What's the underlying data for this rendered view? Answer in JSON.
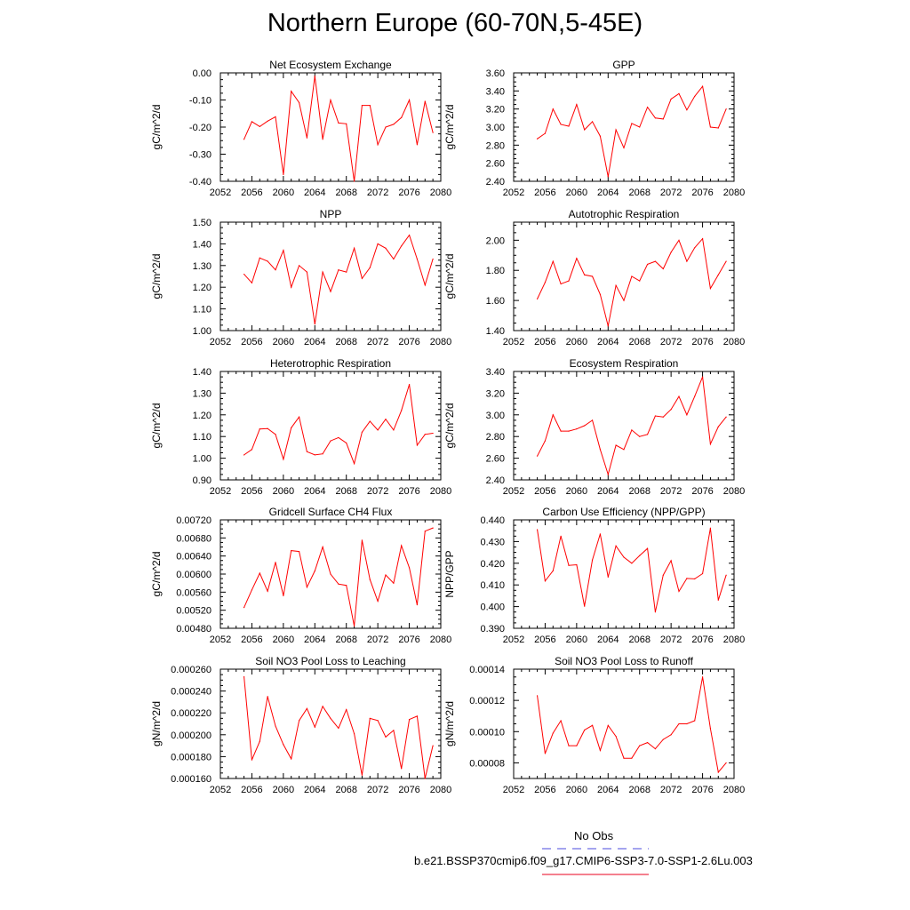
{
  "figure": {
    "title": "Northern Europe (60-70N,5-45E)",
    "legend": [
      {
        "label": "No Obs",
        "color": "#4a4adf",
        "dash": "dashed"
      },
      {
        "label": "b.e21.BSSP370cmip6.f09_g17.CMIP6-SSP3-7.0-SSP1-2.6Lu.003",
        "color": "#e8001c",
        "dash": "solid"
      }
    ],
    "line_color": "#ff0000"
  },
  "chart_data": [
    {
      "type": "line",
      "title": "Net Ecosystem Exchange",
      "ylabel": "gC/m^2/d",
      "xlim": [
        2052,
        2080
      ],
      "xticks": [
        "2052",
        "2056",
        "2060",
        "2064",
        "2068",
        "2072",
        "2076",
        "2080"
      ],
      "ylim": [
        -0.4,
        0.0
      ],
      "yticks": [
        "0.00",
        "-0.10",
        "-0.20",
        "-0.30",
        "-0.40"
      ],
      "ytick_values": [
        0.0,
        -0.1,
        -0.2,
        -0.3,
        -0.4
      ],
      "x": [
        2055,
        2056,
        2057,
        2058,
        2059,
        2060,
        2061,
        2062,
        2063,
        2064,
        2065,
        2066,
        2067,
        2068,
        2069,
        2070,
        2071,
        2072,
        2073,
        2074,
        2075,
        2076,
        2077,
        2078,
        2079
      ],
      "values": [
        -0.245,
        -0.18,
        -0.198,
        -0.178,
        -0.162,
        -0.375,
        -0.068,
        -0.11,
        -0.24,
        -0.012,
        -0.245,
        -0.1,
        -0.185,
        -0.188,
        -0.4,
        -0.12,
        -0.12,
        -0.265,
        -0.2,
        -0.19,
        -0.165,
        -0.1,
        -0.265,
        -0.105,
        -0.22
      ]
    },
    {
      "type": "line",
      "title": "GPP",
      "ylabel": "gC/m^2/d",
      "xlim": [
        2052,
        2080
      ],
      "xticks": [
        "2052",
        "2056",
        "2060",
        "2064",
        "2068",
        "2072",
        "2076",
        "2080"
      ],
      "ylim": [
        2.4,
        3.6
      ],
      "yticks": [
        "3.60",
        "3.40",
        "3.20",
        "3.00",
        "2.80",
        "2.60",
        "2.40"
      ],
      "ytick_values": [
        3.6,
        3.4,
        3.2,
        3.0,
        2.8,
        2.6,
        2.4
      ],
      "x": [
        2055,
        2056,
        2057,
        2058,
        2059,
        2060,
        2061,
        2062,
        2063,
        2064,
        2065,
        2066,
        2067,
        2068,
        2069,
        2070,
        2071,
        2072,
        2073,
        2074,
        2075,
        2076,
        2077,
        2078,
        2079
      ],
      "values": [
        2.87,
        2.93,
        3.2,
        3.03,
        3.01,
        3.25,
        2.97,
        3.06,
        2.9,
        2.45,
        2.97,
        2.77,
        3.04,
        3.0,
        3.22,
        3.1,
        3.09,
        3.31,
        3.37,
        3.19,
        3.34,
        3.45,
        3.0,
        2.99,
        3.2
      ]
    },
    {
      "type": "line",
      "title": "NPP",
      "ylabel": "gC/m^2/d",
      "xlim": [
        2052,
        2080
      ],
      "xticks": [
        "2052",
        "2056",
        "2060",
        "2064",
        "2068",
        "2072",
        "2076",
        "2080"
      ],
      "ylim": [
        1.0,
        1.5
      ],
      "yticks": [
        "1.50",
        "1.40",
        "1.30",
        "1.20",
        "1.10",
        "1.00"
      ],
      "ytick_values": [
        1.5,
        1.4,
        1.3,
        1.2,
        1.1,
        1.0
      ],
      "x": [
        2055,
        2056,
        2057,
        2058,
        2059,
        2060,
        2061,
        2062,
        2063,
        2064,
        2065,
        2066,
        2067,
        2068,
        2069,
        2070,
        2071,
        2072,
        2073,
        2074,
        2075,
        2076,
        2077,
        2078,
        2079
      ],
      "values": [
        1.26,
        1.22,
        1.335,
        1.32,
        1.28,
        1.37,
        1.2,
        1.3,
        1.27,
        1.03,
        1.27,
        1.18,
        1.28,
        1.27,
        1.38,
        1.24,
        1.29,
        1.4,
        1.38,
        1.33,
        1.39,
        1.44,
        1.33,
        1.21,
        1.33
      ]
    },
    {
      "type": "line",
      "title": "Autotrophic Respiration",
      "ylabel": "gC/m^2/d",
      "xlim": [
        2052,
        2080
      ],
      "xticks": [
        "2052",
        "2056",
        "2060",
        "2064",
        "2068",
        "2072",
        "2076",
        "2080"
      ],
      "ylim": [
        1.4,
        2.12
      ],
      "yticks": [
        "2.00",
        "1.80",
        "1.60",
        "1.40"
      ],
      "ytick_values": [
        2.0,
        1.8,
        1.6,
        1.4
      ],
      "x": [
        2055,
        2056,
        2057,
        2058,
        2059,
        2060,
        2061,
        2062,
        2063,
        2064,
        2065,
        2066,
        2067,
        2068,
        2069,
        2070,
        2071,
        2072,
        2073,
        2074,
        2075,
        2076,
        2077,
        2078,
        2079
      ],
      "values": [
        1.61,
        1.72,
        1.86,
        1.71,
        1.73,
        1.88,
        1.77,
        1.76,
        1.64,
        1.43,
        1.7,
        1.6,
        1.76,
        1.73,
        1.84,
        1.86,
        1.81,
        1.92,
        2.0,
        1.86,
        1.95,
        2.01,
        1.68,
        1.77,
        1.86
      ]
    },
    {
      "type": "line",
      "title": "Heterotrophic Respiration",
      "ylabel": "gC/m^2/d",
      "xlim": [
        2052,
        2080
      ],
      "xticks": [
        "2052",
        "2056",
        "2060",
        "2064",
        "2068",
        "2072",
        "2076",
        "2080"
      ],
      "ylim": [
        0.9,
        1.4
      ],
      "yticks": [
        "1.40",
        "1.30",
        "1.20",
        "1.10",
        "1.00",
        "0.90"
      ],
      "ytick_values": [
        1.4,
        1.3,
        1.2,
        1.1,
        1.0,
        0.9
      ],
      "x": [
        2055,
        2056,
        2057,
        2058,
        2059,
        2060,
        2061,
        2062,
        2063,
        2064,
        2065,
        2066,
        2067,
        2068,
        2069,
        2070,
        2071,
        2072,
        2073,
        2074,
        2075,
        2076,
        2077,
        2078,
        2079
      ],
      "values": [
        1.015,
        1.04,
        1.135,
        1.137,
        1.11,
        0.995,
        1.14,
        1.19,
        1.03,
        1.015,
        1.02,
        1.08,
        1.095,
        1.07,
        0.975,
        1.12,
        1.17,
        1.13,
        1.18,
        1.13,
        1.22,
        1.34,
        1.06,
        1.11,
        1.115
      ]
    },
    {
      "type": "line",
      "title": "Ecosystem Respiration",
      "ylabel": "gC/m^2/d",
      "xlim": [
        2052,
        2080
      ],
      "xticks": [
        "2052",
        "2056",
        "2060",
        "2064",
        "2068",
        "2072",
        "2076",
        "2080"
      ],
      "ylim": [
        2.4,
        3.4
      ],
      "yticks": [
        "3.40",
        "3.20",
        "3.00",
        "2.80",
        "2.60",
        "2.40"
      ],
      "ytick_values": [
        3.4,
        3.2,
        3.0,
        2.8,
        2.6,
        2.4
      ],
      "x": [
        2055,
        2056,
        2057,
        2058,
        2059,
        2060,
        2061,
        2062,
        2063,
        2064,
        2065,
        2066,
        2067,
        2068,
        2069,
        2070,
        2071,
        2072,
        2073,
        2074,
        2075,
        2076,
        2077,
        2078,
        2079
      ],
      "values": [
        2.62,
        2.76,
        3.0,
        2.85,
        2.85,
        2.87,
        2.9,
        2.95,
        2.68,
        2.45,
        2.72,
        2.68,
        2.86,
        2.8,
        2.82,
        2.99,
        2.98,
        3.05,
        3.17,
        3.0,
        3.17,
        3.35,
        2.73,
        2.89,
        2.98
      ]
    },
    {
      "type": "line",
      "title": "Gridcell Surface CH4 Flux",
      "ylabel": "gC/m^2/d",
      "xlim": [
        2052,
        2080
      ],
      "xticks": [
        "2052",
        "2056",
        "2060",
        "2064",
        "2068",
        "2072",
        "2076",
        "2080"
      ],
      "ylim": [
        0.0048,
        0.0072
      ],
      "yticks": [
        "0.00720",
        "0.00680",
        "0.00640",
        "0.00600",
        "0.00560",
        "0.00520",
        "0.00480"
      ],
      "ytick_values": [
        0.0072,
        0.0068,
        0.0064,
        0.006,
        0.0056,
        0.0052,
        0.0048
      ],
      "x": [
        2055,
        2056,
        2057,
        2058,
        2059,
        2060,
        2061,
        2062,
        2063,
        2064,
        2065,
        2066,
        2067,
        2068,
        2069,
        2070,
        2071,
        2072,
        2073,
        2074,
        2075,
        2076,
        2077,
        2078,
        2079
      ],
      "values": [
        0.00526,
        0.00565,
        0.00602,
        0.00562,
        0.00626,
        0.00552,
        0.00652,
        0.0065,
        0.00571,
        0.00607,
        0.0066,
        0.006,
        0.00578,
        0.00575,
        0.00485,
        0.00675,
        0.00588,
        0.0054,
        0.00598,
        0.0058,
        0.00663,
        0.00614,
        0.00532,
        0.00695,
        0.00702
      ]
    },
    {
      "type": "line",
      "title": "Carbon Use Efficiency (NPP/GPP)",
      "ylabel": "NPP/GPP",
      "xlim": [
        2052,
        2080
      ],
      "xticks": [
        "2052",
        "2056",
        "2060",
        "2064",
        "2068",
        "2072",
        "2076",
        "2080"
      ],
      "ylim": [
        0.39,
        0.44
      ],
      "yticks": [
        "0.440",
        "0.430",
        "0.420",
        "0.410",
        "0.400",
        "0.390"
      ],
      "ytick_values": [
        0.44,
        0.43,
        0.42,
        0.41,
        0.4,
        0.39
      ],
      "x": [
        2055,
        2056,
        2057,
        2058,
        2059,
        2060,
        2061,
        2062,
        2063,
        2064,
        2065,
        2066,
        2067,
        2068,
        2069,
        2070,
        2071,
        2072,
        2073,
        2074,
        2075,
        2076,
        2077,
        2078,
        2079
      ],
      "values": [
        0.4355,
        0.4118,
        0.4165,
        0.4325,
        0.419,
        0.4193,
        0.4002,
        0.4215,
        0.4335,
        0.4136,
        0.428,
        0.4228,
        0.42,
        0.4235,
        0.4268,
        0.3975,
        0.4145,
        0.4212,
        0.407,
        0.413,
        0.4128,
        0.4152,
        0.4362,
        0.403,
        0.4145
      ]
    },
    {
      "type": "line",
      "title": "Soil NO3 Pool Loss to Leaching",
      "ylabel": "gN/m^2/d",
      "xlim": [
        2052,
        2080
      ],
      "xticks": [
        "2052",
        "2056",
        "2060",
        "2064",
        "2068",
        "2072",
        "2076",
        "2080"
      ],
      "ylim": [
        0.00016,
        0.00026
      ],
      "yticks": [
        "0.000260",
        "0.000240",
        "0.000220",
        "0.000200",
        "0.000180",
        "0.000160"
      ],
      "ytick_values": [
        0.00026,
        0.00024,
        0.00022,
        0.0002,
        0.00018,
        0.00016
      ],
      "x": [
        2055,
        2056,
        2057,
        2058,
        2059,
        2060,
        2061,
        2062,
        2063,
        2064,
        2065,
        2066,
        2067,
        2068,
        2069,
        2070,
        2071,
        2072,
        2073,
        2074,
        2075,
        2076,
        2077,
        2078,
        2079
      ],
      "values": [
        0.000253,
        0.000177,
        0.000194,
        0.000235,
        0.000208,
        0.000191,
        0.000178,
        0.000213,
        0.000224,
        0.000207,
        0.000226,
        0.000215,
        0.000206,
        0.000223,
        0.000201,
        0.000163,
        0.000215,
        0.000213,
        0.000198,
        0.000204,
        0.000169,
        0.000214,
        0.000217,
        0.00016,
        0.00019
      ]
    },
    {
      "type": "line",
      "title": "Soil NO3 Pool Loss to Runoff",
      "ylabel": "gN/m^2/d",
      "xlim": [
        2052,
        2080
      ],
      "xticks": [
        "2052",
        "2056",
        "2060",
        "2064",
        "2068",
        "2072",
        "2076",
        "2080"
      ],
      "ylim": [
        7e-05,
        0.00014
      ],
      "yticks": [
        "0.00014",
        "0.00012",
        "0.00010",
        "0.00008"
      ],
      "ytick_values": [
        0.00014,
        0.00012,
        0.0001,
        8e-05
      ],
      "x": [
        2055,
        2056,
        2057,
        2058,
        2059,
        2060,
        2061,
        2062,
        2063,
        2064,
        2065,
        2066,
        2067,
        2068,
        2069,
        2070,
        2071,
        2072,
        2073,
        2074,
        2075,
        2076,
        2077,
        2078,
        2079
      ],
      "values": [
        0.000123,
        8.6e-05,
        9.9e-05,
        0.000107,
        9.1e-05,
        9.1e-05,
        0.000101,
        0.000104,
        8.8e-05,
        0.000104,
        9.7e-05,
        8.3e-05,
        8.3e-05,
        9.1e-05,
        9.3e-05,
        8.9e-05,
        9.5e-05,
        9.8e-05,
        0.000105,
        0.000105,
        0.000107,
        0.000135,
        0.000102,
        7.4e-05,
        8e-05
      ]
    }
  ]
}
